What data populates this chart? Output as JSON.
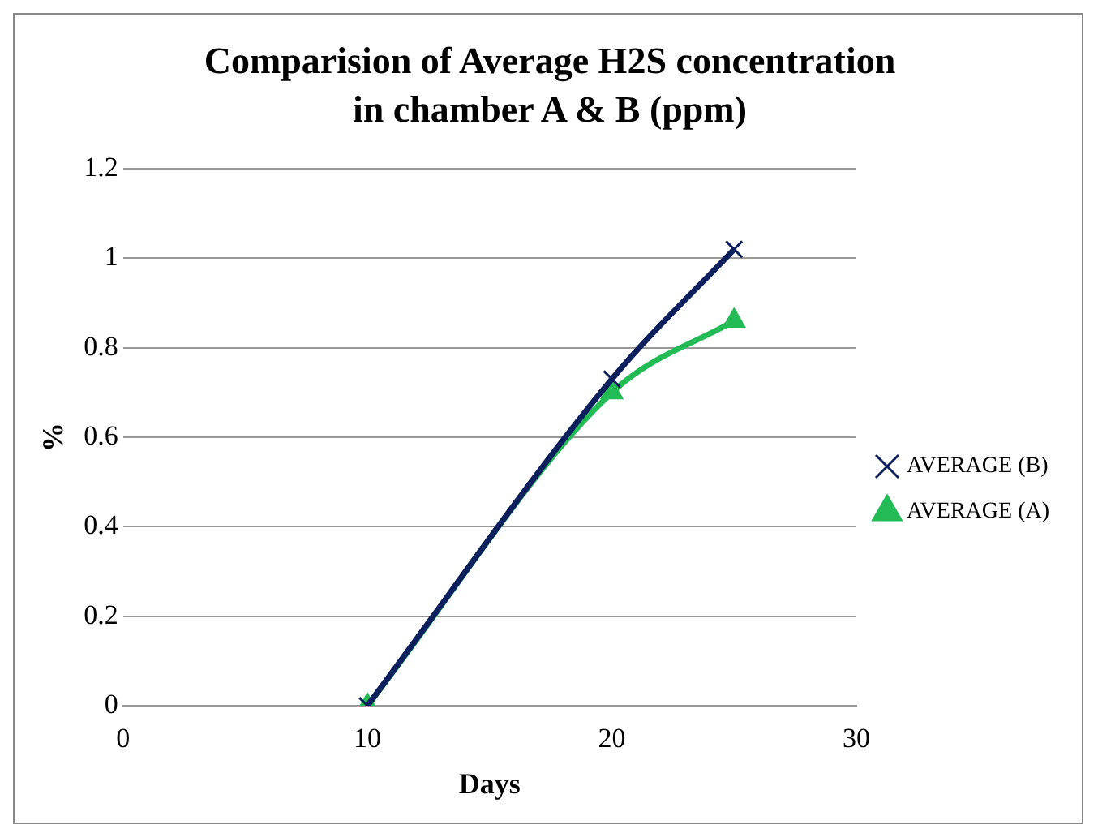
{
  "chart_data": {
    "type": "line",
    "title": "Comparision of Average H2S concentration  in chamber A & B (ppm)",
    "xlabel": "Days",
    "ylabel": "%",
    "xlim": [
      0,
      30
    ],
    "xticks": [
      0,
      10,
      20,
      30
    ],
    "ylim": [
      0,
      1.2
    ],
    "yticks": [
      0,
      0.2,
      0.4,
      0.6,
      0.8,
      1,
      1.2
    ],
    "grid": "y",
    "legend": "right",
    "series": [
      {
        "name": "AVERAGE (A)",
        "color": "#22bb55",
        "x": [
          10,
          20,
          25
        ],
        "values": [
          0,
          0.7,
          0.86
        ],
        "marker": "triangle"
      },
      {
        "name": "AVERAGE (B)",
        "color": "#0d1f5c",
        "x": [
          10,
          20,
          25
        ],
        "values": [
          0,
          0.73,
          1.02
        ],
        "marker": "cross"
      }
    ]
  }
}
